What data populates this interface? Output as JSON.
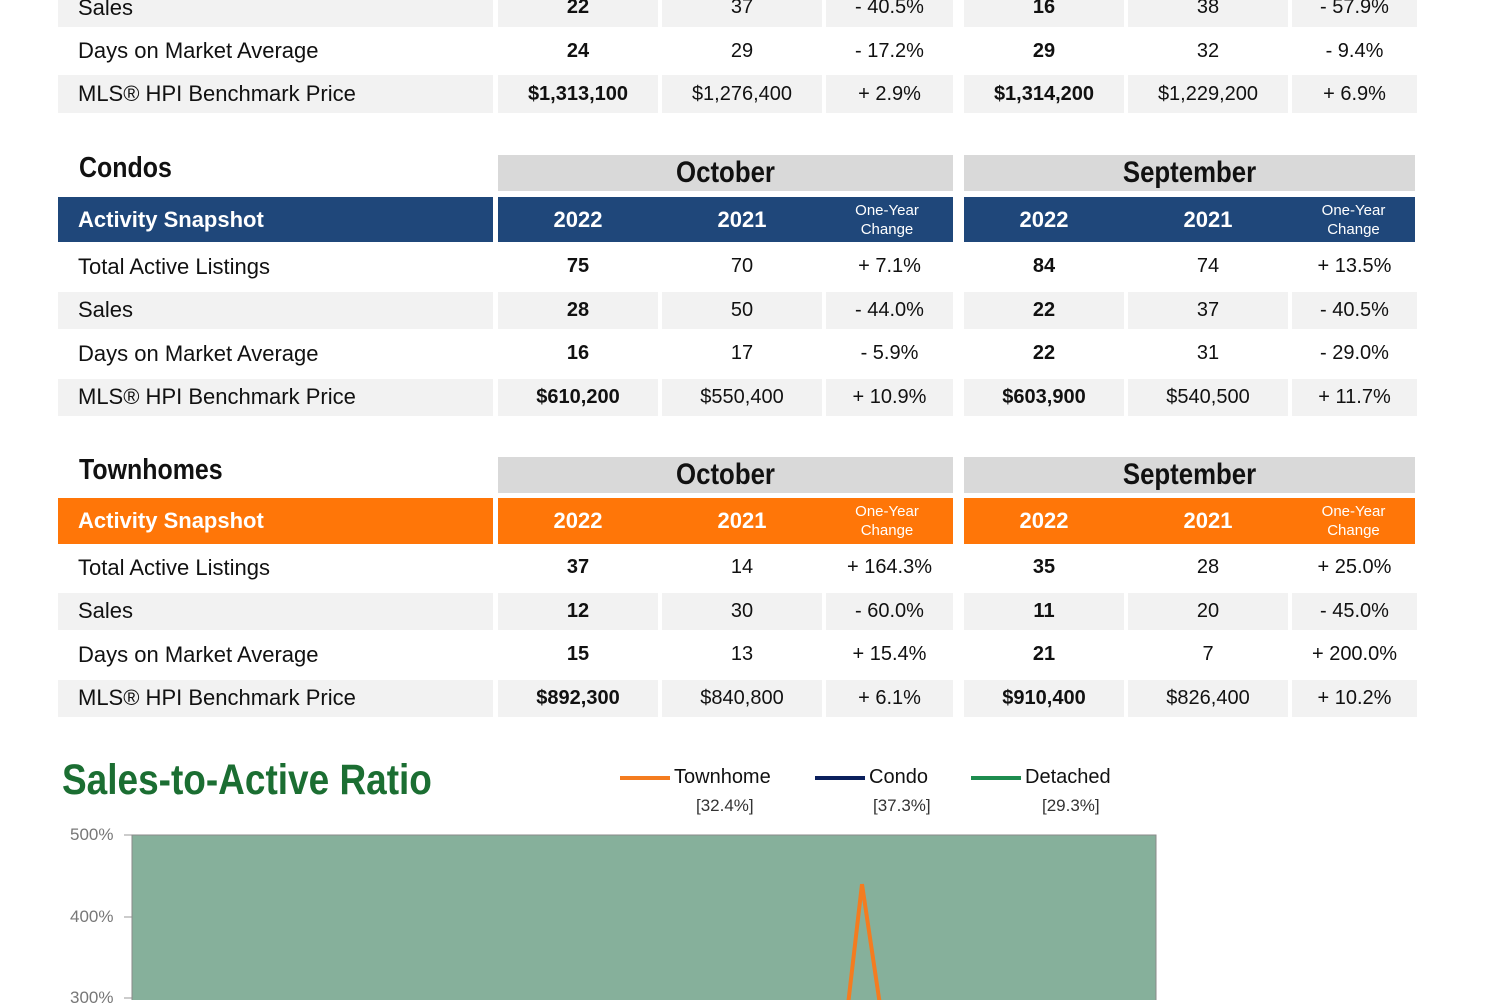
{
  "detached_partial": {
    "rows": [
      {
        "label": "Sales",
        "oct": [
          "22",
          "37",
          "- 40.5%"
        ],
        "sep": [
          "16",
          "38",
          "- 57.9%"
        ]
      },
      {
        "label": "Days on Market Average",
        "oct": [
          "24",
          "29",
          "- 17.2%"
        ],
        "sep": [
          "29",
          "32",
          "- 9.4%"
        ]
      },
      {
        "label": "MLS® HPI Benchmark Price",
        "oct": [
          "$1,313,100",
          "$1,276,400",
          "+ 2.9%"
        ],
        "sep": [
          "$1,314,200",
          "$1,229,200",
          "+ 6.9%"
        ]
      }
    ]
  },
  "condos": {
    "title": "Condos",
    "month1": "October",
    "month2": "September",
    "snapshot": "Activity Snapshot",
    "year1": "2022",
    "year2": "2021",
    "change_line1": "One-Year",
    "change_line2": "Change",
    "color": "#1f477a",
    "rows": [
      {
        "label": "Total Active Listings",
        "oct": [
          "75",
          "70",
          "+ 7.1%"
        ],
        "sep": [
          "84",
          "74",
          "+ 13.5%"
        ]
      },
      {
        "label": "Sales",
        "oct": [
          "28",
          "50",
          "- 44.0%"
        ],
        "sep": [
          "22",
          "37",
          "- 40.5%"
        ]
      },
      {
        "label": "Days on Market Average",
        "oct": [
          "16",
          "17",
          "- 5.9%"
        ],
        "sep": [
          "22",
          "31",
          "- 29.0%"
        ]
      },
      {
        "label": "MLS® HPI Benchmark Price",
        "oct": [
          "$610,200",
          "$550,400",
          "+ 10.9%"
        ],
        "sep": [
          "$603,900",
          "$540,500",
          "+ 11.7%"
        ]
      }
    ]
  },
  "townhomes": {
    "title": "Townhomes",
    "month1": "October",
    "month2": "September",
    "snapshot": "Activity Snapshot",
    "year1": "2022",
    "year2": "2021",
    "change_line1": "One-Year",
    "change_line2": "Change",
    "color": "#ff7608",
    "rows": [
      {
        "label": "Total Active Listings",
        "oct": [
          "37",
          "14",
          "+ 164.3%"
        ],
        "sep": [
          "35",
          "28",
          "+ 25.0%"
        ]
      },
      {
        "label": "Sales",
        "oct": [
          "12",
          "30",
          "- 60.0%"
        ],
        "sep": [
          "11",
          "20",
          "- 45.0%"
        ]
      },
      {
        "label": "Days on Market Average",
        "oct": [
          "15",
          "13",
          "+ 15.4%"
        ],
        "sep": [
          "21",
          "7",
          "+ 200.0%"
        ]
      },
      {
        "label": "MLS® HPI Benchmark Price",
        "oct": [
          "$892,300",
          "$840,800",
          "+ 6.1%"
        ],
        "sep": [
          "$910,400",
          "$826,400",
          "+ 10.2%"
        ]
      }
    ]
  },
  "chart": {
    "title": "Sales-to-Active Ratio",
    "legend": [
      {
        "name": "Townhome",
        "value": "[32.4%]",
        "color": "#f47c20"
      },
      {
        "name": "Condo",
        "value": "[37.3%]",
        "color": "#0a1f5c"
      },
      {
        "name": "Detached",
        "value": "[29.3%]",
        "color": "#1d8c4e"
      }
    ],
    "plot_bg": "#86b09b"
  },
  "chart_data": {
    "type": "line",
    "title": "Sales-to-Active Ratio",
    "yticks": [
      "500%",
      "400%",
      "300%"
    ],
    "ylim_visible": [
      300,
      500
    ],
    "series": [
      {
        "name": "Townhome",
        "color": "#f47c20",
        "peak_y": 440
      }
    ],
    "legend_position": "top"
  }
}
